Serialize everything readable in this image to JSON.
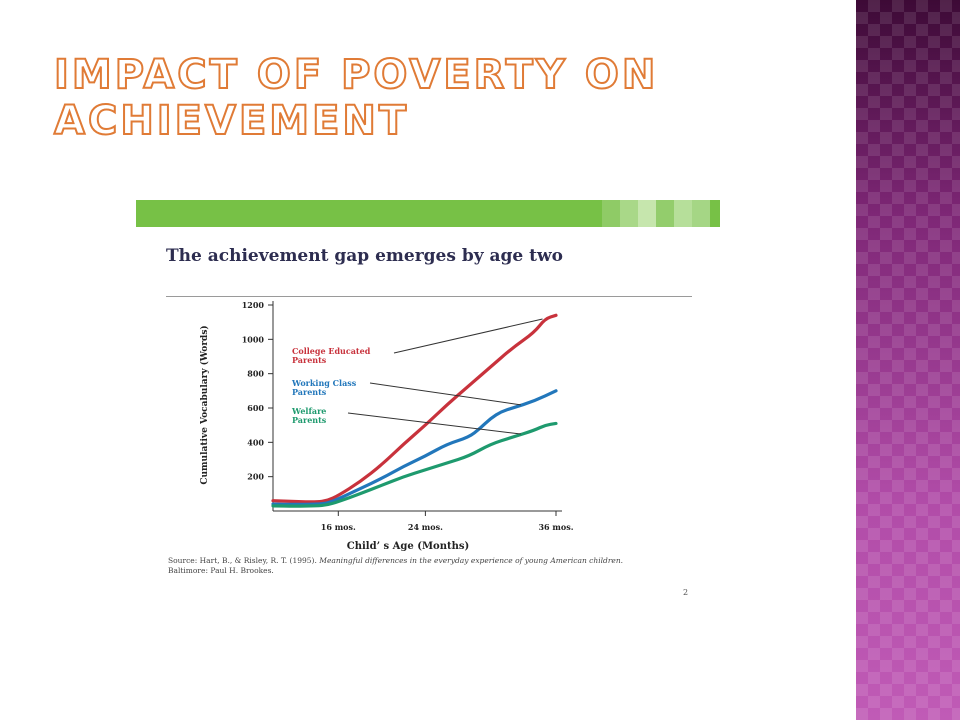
{
  "slide": {
    "title": "Impact of Poverty on Achievement"
  },
  "figure": {
    "page_number": "2",
    "source_prefix": "Source: Hart, B., & Risley, R. T. (1995). ",
    "source_title": "Meaningful differences in the everyday experience of young American children.",
    "source_suffix": "Baltimore: Paul H. Brookes."
  },
  "colors": {
    "title_outline": "#e07b36",
    "green_bar": "#77c146",
    "college": "#c8323c",
    "working": "#2277bb",
    "welfare": "#1e9a6e"
  },
  "chart_data": {
    "type": "line",
    "title": "The achievement gap emerges by age two",
    "xlabel": "Child’ s Age (Months)",
    "ylabel": "Cumulative Vocabulary (Words)",
    "x_ticks": [
      16,
      24,
      36
    ],
    "x_tick_labels": [
      "16 mos.",
      "24 mos.",
      "36 mos."
    ],
    "xlim": [
      10,
      36
    ],
    "y_ticks": [
      200,
      400,
      600,
      800,
      1000,
      1200
    ],
    "ylim": [
      0,
      1200
    ],
    "series": [
      {
        "name": "College Educated Parents",
        "label_lines": [
          "College Educated",
          "Parents"
        ],
        "color": "#c8323c",
        "x": [
          10,
          12,
          14,
          15,
          16,
          18,
          20,
          22,
          24,
          26,
          28,
          30,
          32,
          34,
          35,
          36
        ],
        "y": [
          60,
          55,
          52,
          60,
          90,
          170,
          270,
          390,
          500,
          620,
          730,
          840,
          950,
          1040,
          1120,
          1140
        ]
      },
      {
        "name": "Working Class Parents",
        "label_lines": [
          "Working Class",
          "Parents"
        ],
        "color": "#2277bb",
        "x": [
          10,
          12,
          14,
          15,
          16,
          18,
          20,
          22,
          24,
          26,
          28,
          29,
          30,
          31,
          32,
          34,
          36
        ],
        "y": [
          40,
          38,
          40,
          45,
          70,
          130,
          190,
          260,
          320,
          390,
          430,
          480,
          540,
          580,
          600,
          640,
          700
        ]
      },
      {
        "name": "Welfare Parents",
        "label_lines": [
          "Welfare",
          "Parents"
        ],
        "color": "#1e9a6e",
        "x": [
          10,
          12,
          14,
          15,
          16,
          18,
          20,
          22,
          24,
          26,
          28,
          30,
          32,
          34,
          35,
          36
        ],
        "y": [
          30,
          28,
          30,
          35,
          55,
          100,
          150,
          200,
          240,
          280,
          320,
          390,
          430,
          470,
          500,
          510
        ]
      }
    ]
  }
}
